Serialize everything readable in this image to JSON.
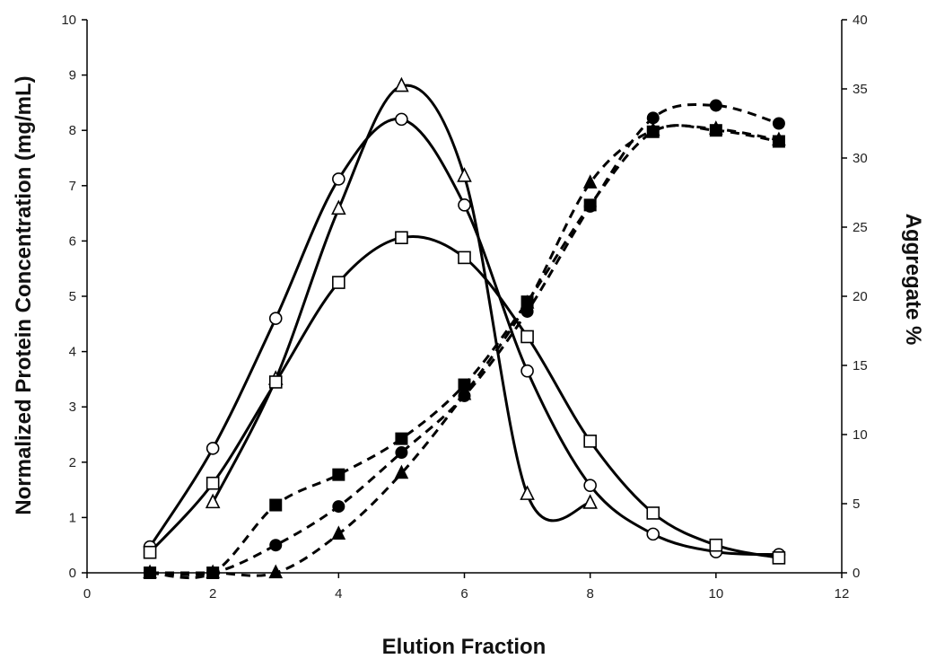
{
  "chart_data": {
    "type": "line",
    "title": "",
    "xlabel": "Elution Fraction",
    "ylabel": "Normalized Protein Concentration (mg/mL)",
    "y2label": "Aggregate %",
    "xlim": [
      0,
      12
    ],
    "ylim": [
      0,
      10
    ],
    "y2lim": [
      0,
      40
    ],
    "x_ticks": [
      "0",
      "2",
      "4",
      "6",
      "8",
      "10",
      "12"
    ],
    "y_ticks": [
      "0",
      "1",
      "2",
      "3",
      "4",
      "5",
      "6",
      "7",
      "8",
      "9",
      "10"
    ],
    "y2_ticks": [
      "0",
      "5",
      "10",
      "15",
      "20",
      "25",
      "30",
      "35",
      "40"
    ],
    "grid": false,
    "legend": "none",
    "series": [
      {
        "axis": "left",
        "marker": "open-circle",
        "style": "solid",
        "x": [
          1,
          2,
          3,
          4,
          5,
          6,
          7,
          8,
          9,
          10,
          11
        ],
        "y": [
          0.47,
          2.25,
          4.6,
          7.12,
          8.2,
          6.65,
          3.65,
          1.58,
          0.7,
          0.38,
          0.33
        ]
      },
      {
        "axis": "left",
        "marker": "open-triangle",
        "style": "solid",
        "x": [
          2,
          3,
          4,
          5,
          6,
          7,
          8
        ],
        "y": [
          1.27,
          3.5,
          6.58,
          8.8,
          7.17,
          1.42,
          1.26
        ]
      },
      {
        "axis": "left",
        "marker": "open-square",
        "style": "solid",
        "x": [
          1,
          2,
          3,
          4,
          5,
          6,
          7,
          8,
          9,
          10,
          11
        ],
        "y": [
          0.37,
          1.62,
          3.45,
          5.25,
          6.06,
          5.7,
          4.27,
          2.38,
          1.08,
          0.5,
          0.27
        ]
      },
      {
        "axis": "right",
        "marker": "filled-circle",
        "style": "dashed",
        "x": [
          1,
          2,
          3,
          4,
          5,
          6,
          7,
          8,
          9,
          10,
          11
        ],
        "y": [
          0,
          0,
          2.0,
          4.8,
          8.7,
          12.8,
          18.9,
          26.5,
          32.9,
          33.8,
          32.5
        ]
      },
      {
        "axis": "right",
        "marker": "filled-triangle",
        "style": "dashed",
        "x": [
          1,
          2,
          3,
          4,
          5,
          6,
          7,
          8,
          9,
          10,
          11
        ],
        "y": [
          0,
          0,
          0,
          2.8,
          7.2,
          12.9,
          19.5,
          28.2,
          32.0,
          32.1,
          31.3
        ]
      },
      {
        "axis": "right",
        "marker": "filled-square",
        "style": "dashed",
        "x": [
          1,
          2,
          3,
          4,
          5,
          6,
          7,
          8,
          9,
          10,
          11
        ],
        "y": [
          0,
          0,
          4.9,
          7.1,
          9.7,
          13.6,
          19.6,
          26.6,
          31.9,
          32.0,
          31.2
        ]
      }
    ]
  }
}
